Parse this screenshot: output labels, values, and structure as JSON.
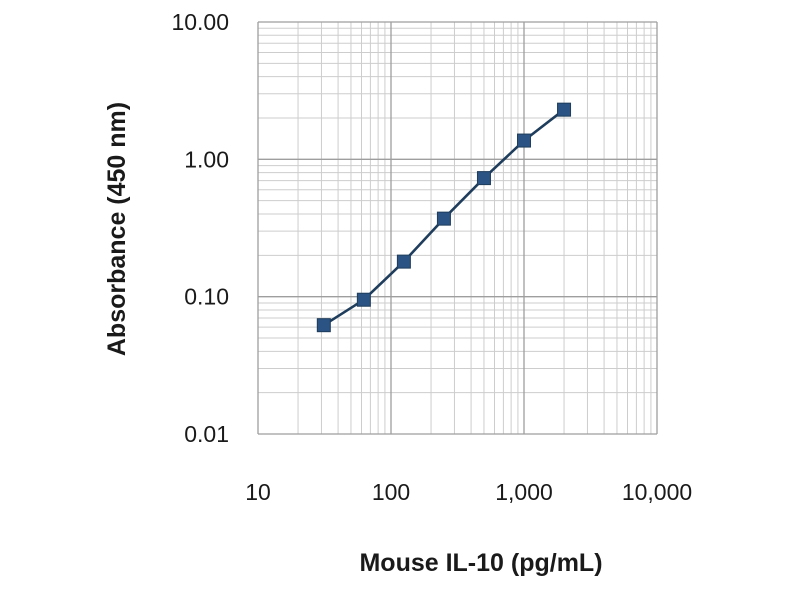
{
  "colors": {
    "series": "#1f3d5c",
    "marker": "#2b5383",
    "grid_major": "#9e9e9e",
    "grid_minor": "#cdcdcd",
    "background": "#ffffff"
  },
  "chart_data": {
    "type": "line",
    "title": "",
    "xlabel": "Mouse IL-10 (pg/mL)",
    "ylabel": "Absorbance (450 nm)",
    "xscale": "log",
    "yscale": "log",
    "xlim": [
      10,
      10000
    ],
    "ylim": [
      0.01,
      10
    ],
    "grid": true,
    "x_tick_values": [
      10,
      100,
      1000,
      10000
    ],
    "x_tick_labels": [
      "10",
      "100",
      "1,000",
      "10,000"
    ],
    "y_tick_values": [
      0.01,
      0.1,
      1,
      10
    ],
    "y_tick_labels": [
      "0.01",
      "0.10",
      "1.00",
      "10.00"
    ],
    "marker": "square",
    "series": [
      {
        "x": [
          31.25,
          62.5,
          125,
          250,
          500,
          1000,
          2000
        ],
        "values": [
          0.062,
          0.095,
          0.18,
          0.37,
          0.73,
          1.37,
          2.3
        ]
      }
    ]
  }
}
